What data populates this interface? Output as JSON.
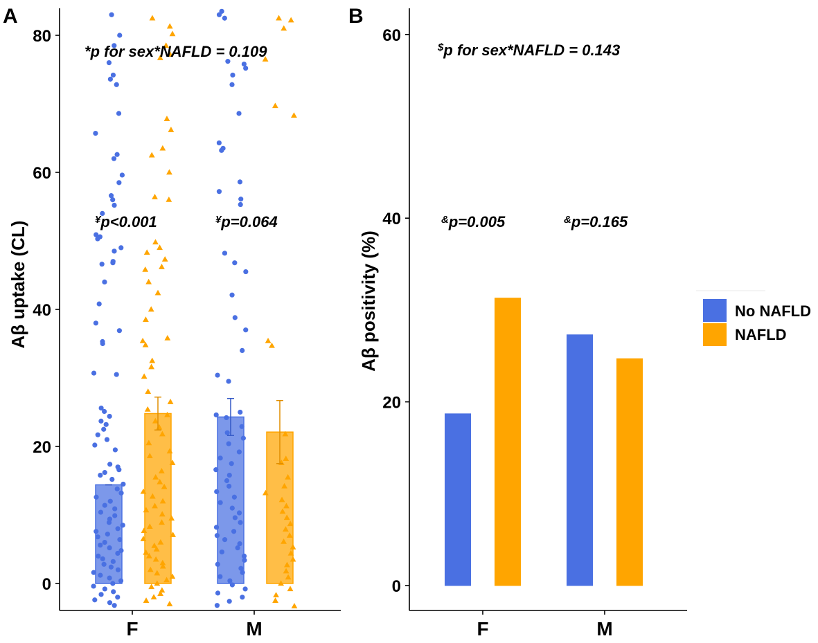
{
  "colors": {
    "no_nafld": "#4A70E2",
    "nafld": "#FFA500",
    "no_nafld_err": "#3358C6",
    "nafld_err": "#E08E00"
  },
  "legend": {
    "items": [
      {
        "label": "No NAFLD",
        "color": "#4A70E2"
      },
      {
        "label": "NAFLD",
        "color": "#FFA500"
      }
    ]
  },
  "chart_data": [
    {
      "panel": "A",
      "type": "bar",
      "ylabel": "Aβ uptake (CL)",
      "ylim": [
        -3.5,
        84
      ],
      "yticks": [
        0,
        20,
        40,
        60,
        80
      ],
      "categories": [
        "F",
        "M"
      ],
      "series": [
        {
          "name": "No NAFLD",
          "values": [
            14.4,
            24.3
          ],
          "error_upper": [
            14.4,
            27.0
          ],
          "error_lower": [
            14.4,
            21.6
          ]
        },
        {
          "name": "NAFLD",
          "values": [
            24.8,
            22.1
          ],
          "error_upper": [
            27.2,
            26.7
          ],
          "error_lower": [
            22.4,
            17.5
          ]
        }
      ],
      "points": [
        {
          "category": "F",
          "series": "No NAFLD",
          "y": [
            83,
            80,
            78.5,
            76,
            74.2,
            73.6,
            72.8,
            68.6,
            65.7,
            62.6,
            62,
            59.6,
            58.5,
            56.6,
            56,
            55.2,
            54,
            50.9,
            50.6,
            50.3,
            49,
            48.5,
            47,
            46.8,
            46.6,
            44,
            40.8,
            38,
            36.9,
            35.3,
            35,
            30.7,
            30.5,
            25.6,
            25.1,
            24.4,
            23.7,
            23.2,
            22.5,
            21.7,
            21,
            20.2,
            19.5,
            17.4,
            17,
            16.6,
            16.2,
            15.8,
            15.2,
            14.5,
            13.8,
            13.2,
            12.6,
            12,
            11.4,
            10.9,
            10.4,
            9.9,
            9.4,
            8.9,
            8.5,
            8,
            7.6,
            7.2,
            6.8,
            6.4,
            6,
            5.6,
            5.2,
            4.8,
            4.4,
            4,
            3.6,
            3.2,
            2.8,
            2.4,
            2,
            1.6,
            1.2,
            0.8,
            0.4,
            0,
            -0.4,
            -0.8,
            -1.2,
            -1.6,
            -2,
            -2.4,
            -2.8,
            -3.2
          ]
        },
        {
          "category": "F",
          "series": "NAFLD",
          "y": [
            82.5,
            81.3,
            80.2,
            78.5,
            77.2,
            76.7,
            67.8,
            66.2,
            63.5,
            62.5,
            60,
            56.4,
            56,
            49.8,
            49,
            48.3,
            47.3,
            46.2,
            45.8,
            44,
            42.4,
            40,
            38.5,
            35.8,
            35.4,
            34.8,
            32.5,
            31.6,
            30.2,
            28,
            26.5,
            25.4,
            24.6,
            23.7,
            22.8,
            21.8,
            20.5,
            19.3,
            18.6,
            17.6,
            16.4,
            15.5,
            14.8,
            14.1,
            13.4,
            12.7,
            12,
            11.3,
            10.7,
            10.1,
            9.5,
            8.9,
            8.3,
            7.7,
            7.1,
            6.5,
            6,
            5.5,
            5,
            4.5,
            4,
            3.5,
            3,
            2.5,
            2,
            1.5,
            1,
            0.5,
            0,
            -0.5,
            -1,
            -1.5,
            -2,
            -2.5,
            -3
          ]
        },
        {
          "category": "M",
          "series": "No NAFLD",
          "y": [
            83.5,
            83,
            82.5,
            76.2,
            75.8,
            75.2,
            74.2,
            72.8,
            68.6,
            64.3,
            63.5,
            63.2,
            58.6,
            57.2,
            56.1,
            55.3,
            48.2,
            46.8,
            45.5,
            42.1,
            38.8,
            37,
            34,
            30.4,
            29.5,
            25,
            24.6,
            24.2,
            22.9,
            22,
            21.2,
            20.4,
            19.2,
            18.3,
            17.5,
            16.6,
            15.8,
            15,
            14.2,
            13.4,
            12.6,
            11.8,
            11,
            10.3,
            9.6,
            8.9,
            8.2,
            7.6,
            7,
            6.4,
            5.8,
            5.2,
            4.6,
            4,
            3.4,
            2.8,
            2.2,
            1.6,
            1,
            0.4,
            -0.2,
            -0.8,
            -1.4,
            -2,
            -2.6,
            -3.2
          ]
        },
        {
          "category": "M",
          "series": "NAFLD",
          "y": [
            82.5,
            82.2,
            81,
            76.5,
            69.7,
            68.3,
            35.4,
            34.7,
            21.8,
            18.2,
            17.6,
            15.5,
            14.2,
            13.2,
            12.2,
            11.3,
            10.5,
            9.6,
            8.7,
            7.9,
            7,
            6.1,
            5.3,
            4.4,
            3.5,
            2.7,
            1.8,
            0.9,
            0,
            -0.8,
            -1.7,
            -2.5,
            -3.3
          ]
        }
      ],
      "annotations": [
        {
          "symbol": "*",
          "text": "p for sex*NAFLD = 0.109"
        },
        {
          "symbol": "¥",
          "text": "p<0.001",
          "category": "F"
        },
        {
          "symbol": "¥",
          "text": "p=0.064",
          "category": "M"
        }
      ]
    },
    {
      "panel": "B",
      "type": "bar",
      "ylabel": "Aβ positivity (%)",
      "ylim": [
        -3,
        63
      ],
      "yticks": [
        0,
        20,
        40,
        60
      ],
      "categories": [
        "F",
        "M"
      ],
      "series": [
        {
          "name": "No NAFLD",
          "values": [
            18.7,
            27.3
          ]
        },
        {
          "name": "NAFLD",
          "values": [
            31.3,
            24.7
          ]
        }
      ],
      "annotations": [
        {
          "symbol": "$",
          "text": "p for sex*NAFLD = 0.143"
        },
        {
          "symbol": "&",
          "text": "p=0.005",
          "category": "F"
        },
        {
          "symbol": "&",
          "text": "p=0.165",
          "category": "M"
        }
      ]
    }
  ]
}
